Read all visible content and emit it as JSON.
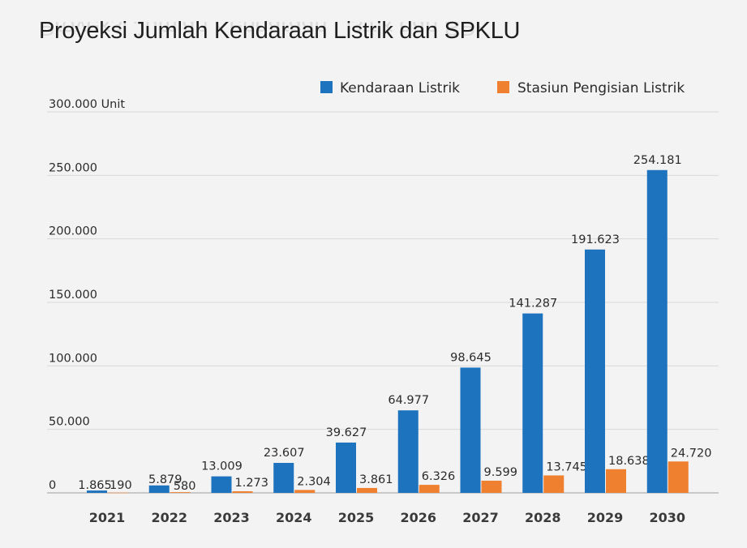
{
  "chart_data": {
    "type": "bar",
    "title": "Proyeksi  Jumlah Kendaraan Listrik dan SPKLU",
    "ylabel": "Unit",
    "ylim": [
      0,
      300000
    ],
    "yticks": [
      0,
      50000,
      100000,
      150000,
      200000,
      250000,
      300000
    ],
    "ytick_labels": [
      "0",
      "50.000",
      "100.000",
      "150.000",
      "200.000",
      "250.000",
      "300.000"
    ],
    "grid": true,
    "legend_position": "top-right",
    "categories": [
      "2021",
      "2022",
      "2023",
      "2024",
      "2025",
      "2026",
      "2027",
      "2028",
      "2029",
      "2030"
    ],
    "series": [
      {
        "name": "Kendaraan Listrik",
        "color": "#1d73be",
        "values": [
          1865,
          5879,
          13009,
          23607,
          39627,
          64977,
          98645,
          141287,
          191623,
          254181
        ],
        "labels": [
          "1.865",
          "5.879",
          "13.009",
          "23.607",
          "39.627",
          "64.977",
          "98.645",
          "141.287",
          "191.623",
          "254.181"
        ]
      },
      {
        "name": "Stasiun Pengisian Listrik",
        "color": "#ef8030",
        "values": [
          190,
          580,
          1273,
          2304,
          3861,
          6326,
          9599,
          13745,
          18638,
          24720
        ],
        "labels": [
          "190",
          "580",
          "1.273",
          "2.304",
          "3.861",
          "6.326",
          "9.599",
          "13.745",
          "18.638",
          "24.720"
        ]
      }
    ]
  }
}
